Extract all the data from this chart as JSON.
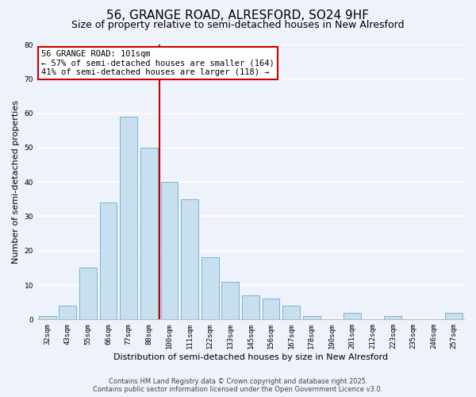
{
  "title": "56, GRANGE ROAD, ALRESFORD, SO24 9HF",
  "subtitle": "Size of property relative to semi-detached houses in New Alresford",
  "xlabel": "Distribution of semi-detached houses by size in New Alresford",
  "ylabel": "Number of semi-detached properties",
  "categories": [
    "32sqm",
    "43sqm",
    "55sqm",
    "66sqm",
    "77sqm",
    "88sqm",
    "100sqm",
    "111sqm",
    "122sqm",
    "133sqm",
    "145sqm",
    "156sqm",
    "167sqm",
    "178sqm",
    "190sqm",
    "201sqm",
    "212sqm",
    "223sqm",
    "235sqm",
    "246sqm",
    "257sqm"
  ],
  "values": [
    1,
    4,
    15,
    34,
    59,
    50,
    40,
    35,
    18,
    11,
    7,
    6,
    4,
    1,
    0,
    2,
    0,
    1,
    0,
    0,
    2
  ],
  "highlight_index": 6,
  "bar_color": "#c8dff0",
  "bar_edge_color": "#7ab3d0",
  "background_color": "#eef2fa",
  "annotation_title": "56 GRANGE ROAD: 101sqm",
  "annotation_line1": "← 57% of semi-detached houses are smaller (164)",
  "annotation_line2": "41% of semi-detached houses are larger (118) →",
  "annotation_box_facecolor": "#ffffff",
  "annotation_border_color": "#cc0000",
  "ylim": [
    0,
    80
  ],
  "yticks": [
    0,
    10,
    20,
    30,
    40,
    50,
    60,
    70,
    80
  ],
  "footer1": "Contains HM Land Registry data © Crown copyright and database right 2025.",
  "footer2": "Contains public sector information licensed under the Open Government Licence v3.0.",
  "title_fontsize": 11,
  "subtitle_fontsize": 9,
  "ylabel_fontsize": 8,
  "xlabel_fontsize": 8,
  "tick_fontsize": 6.5,
  "footer_fontsize": 6,
  "annot_fontsize": 7.5
}
